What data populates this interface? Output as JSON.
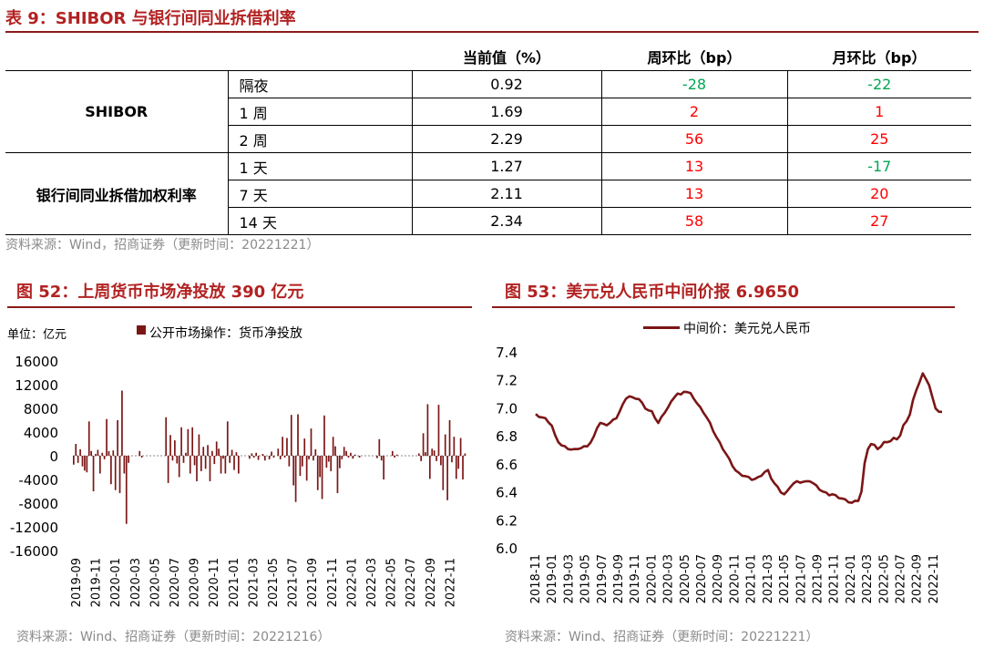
{
  "colors": {
    "title": "#B22222",
    "series": "#7B1616",
    "neg": "#00A651",
    "pos": "#FF0000",
    "source": "#8a8a8a"
  },
  "table": {
    "title": "表 9：SHIBOR 与银行间同业拆借利率",
    "headers": [
      "当前值（%）",
      "周环比（bp）",
      "月环比（bp）"
    ],
    "groups": [
      {
        "name": "SHIBOR",
        "rows": [
          {
            "term": "隔夜",
            "value": "0.92",
            "wow": "-28",
            "mom": "-22"
          },
          {
            "term": "1 周",
            "value": "1.69",
            "wow": "2",
            "mom": "1"
          },
          {
            "term": "2 周",
            "value": "2.29",
            "wow": "56",
            "mom": "25"
          }
        ]
      },
      {
        "name": "银行间同业拆借加权利率",
        "rows": [
          {
            "term": "1 天",
            "value": "1.27",
            "wow": "13",
            "mom": "-17"
          },
          {
            "term": "7 天",
            "value": "2.11",
            "wow": "13",
            "mom": "20"
          },
          {
            "term": "14 天",
            "value": "2.34",
            "wow": "58",
            "mom": "27"
          }
        ]
      }
    ],
    "source": "资料来源：Wind，招商证券（更新时间：20221221）"
  },
  "chart_data": [
    {
      "type": "bar",
      "title": "图 52：上周货币市场净投放 390 亿元",
      "unit_label": "单位：亿元",
      "legend": "公开市场操作：货币净投放",
      "ylim": [
        -16000,
        16000
      ],
      "yticks": [
        "16000",
        "12000",
        "8000",
        "4000",
        "0",
        "-4000",
        "-8000",
        "-12000",
        "-16000"
      ],
      "xticks": [
        "2019-09",
        "2019-11",
        "2020-01",
        "2020-03",
        "2020-05",
        "2020-07",
        "2020-09",
        "2020-11",
        "2021-01",
        "2021-03",
        "2021-05",
        "2021-07",
        "2021-09",
        "2021-11",
        "2022-01",
        "2022-03",
        "2022-05",
        "2022-07",
        "2022-09",
        "2022-11"
      ],
      "values": [
        -1500,
        2000,
        -1200,
        1100,
        -1800,
        -2500,
        -2800,
        5800,
        800,
        -6000,
        300,
        1000,
        -3000,
        500,
        -600,
        6200,
        800,
        -4800,
        900,
        -5800,
        6000,
        -6300,
        11000,
        -3000,
        -11500,
        -1200,
        0,
        0,
        0,
        0,
        800,
        -300,
        0,
        0,
        0,
        0,
        0,
        0,
        0,
        0,
        0,
        0,
        6500,
        -4600,
        3500,
        -800,
        2600,
        -1300,
        -3600,
        4800,
        -1200,
        500,
        4500,
        -3000,
        4800,
        -1600,
        -4300,
        3600,
        -2600,
        1500,
        -2200,
        1800,
        -4300,
        800,
        -1400,
        2400,
        1200,
        -3000,
        -500,
        -3000,
        5800,
        -1200,
        1000,
        -2400,
        600,
        -3000,
        0,
        0,
        0,
        0,
        -500,
        400,
        -300,
        500,
        -700,
        0,
        300,
        -800,
        0,
        -600,
        700,
        -300,
        0,
        1200,
        -600,
        3200,
        -300,
        3000,
        -1800,
        6900,
        -5000,
        -7800,
        7000,
        -3400,
        -1800,
        2900,
        -4200,
        -600,
        4600,
        -800,
        1100,
        -5800,
        -3600,
        -7300,
        6800,
        -2000,
        -1000,
        -2600,
        3200,
        1600,
        -6300,
        -2100,
        -600,
        1500,
        800,
        -300,
        500,
        -500,
        200,
        0,
        -300,
        0,
        0,
        0,
        0,
        0,
        0,
        0,
        -400,
        2800,
        -800,
        -4000,
        0,
        0,
        0,
        800,
        -300,
        200,
        0,
        0,
        0,
        0,
        0,
        0,
        0,
        0,
        0,
        400,
        -900,
        3800,
        600,
        8700,
        -3900,
        1200,
        900,
        -900,
        8600,
        -1600,
        -5800,
        3600,
        -7500,
        6000,
        -1100,
        3200,
        -3900,
        -2200,
        3000,
        -4000,
        390
      ],
      "source": "资料来源：Wind、招商证券（更新时间：20221216）"
    },
    {
      "type": "line",
      "title": "图 53：美元兑人民币中间价报 6.9650",
      "legend": "中间价：美元兑人民币",
      "ylim": [
        6.0,
        7.4
      ],
      "yticks": [
        "7.4",
        "7.2",
        "7.0",
        "6.8",
        "6.6",
        "6.4",
        "6.2",
        "6.0"
      ],
      "xticks": [
        "2018-11",
        "2019-01",
        "2019-03",
        "2019-05",
        "2019-07",
        "2019-09",
        "2019-11",
        "2020-01",
        "2020-03",
        "2020-05",
        "2020-07",
        "2020-09",
        "2020-11",
        "2021-01",
        "2021-03",
        "2021-05",
        "2021-07",
        "2021-09",
        "2021-11",
        "2022-01",
        "2022-03",
        "2022-05",
        "2022-07",
        "2022-09",
        "2022-11"
      ],
      "series": [
        {
          "name": "中间价：美元兑人民币",
          "values": [
            6.95,
            6.94,
            6.93,
            6.92,
            6.9,
            6.87,
            6.8,
            6.76,
            6.73,
            6.72,
            6.71,
            6.7,
            6.7,
            6.71,
            6.71,
            6.72,
            6.73,
            6.75,
            6.79,
            6.86,
            6.89,
            6.88,
            6.88,
            6.89,
            6.91,
            6.93,
            6.97,
            7.02,
            7.07,
            7.08,
            7.07,
            7.07,
            7.06,
            7.03,
            7.0,
            6.98,
            6.97,
            6.93,
            6.89,
            6.93,
            6.97,
            7.0,
            7.04,
            7.08,
            7.1,
            7.09,
            7.12,
            7.11,
            7.1,
            7.07,
            7.03,
            7.0,
            6.97,
            6.93,
            6.89,
            6.84,
            6.79,
            6.75,
            6.71,
            6.67,
            6.63,
            6.59,
            6.55,
            6.53,
            6.52,
            6.51,
            6.5,
            6.49,
            6.49,
            6.5,
            6.52,
            6.54,
            6.55,
            6.5,
            6.46,
            6.43,
            6.4,
            6.38,
            6.4,
            6.44,
            6.46,
            6.47,
            6.47,
            6.47,
            6.47,
            6.48,
            6.46,
            6.44,
            6.42,
            6.4,
            6.39,
            6.38,
            6.38,
            6.37,
            6.36,
            6.35,
            6.34,
            6.33,
            6.32,
            6.33,
            6.34,
            6.4,
            6.6,
            6.71,
            6.74,
            6.73,
            6.71,
            6.72,
            6.75,
            6.76,
            6.76,
            6.78,
            6.78,
            6.8,
            6.87,
            6.91,
            6.95,
            7.05,
            7.13,
            7.18,
            7.24,
            7.21,
            7.16,
            7.07,
            7.0,
            6.97,
            6.965
          ]
        }
      ],
      "source": "资料来源：Wind、招商证券（更新时间：20221221）"
    }
  ]
}
